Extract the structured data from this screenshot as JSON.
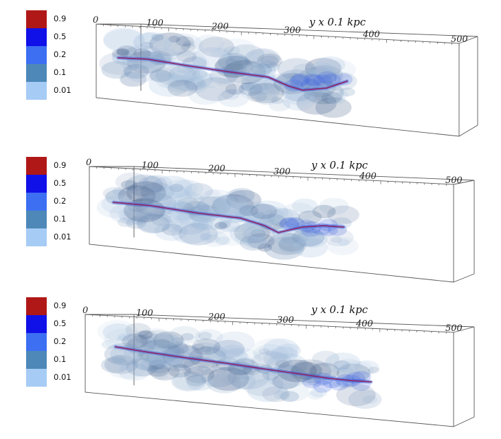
{
  "legend": {
    "levels": [
      {
        "label": "0.9",
        "color": "#b01818"
      },
      {
        "label": "0.5",
        "color": "#1010e8"
      },
      {
        "label": "0.2",
        "color": "#3d6ff2"
      },
      {
        "label": "0.1",
        "color": "#4d88b8"
      },
      {
        "label": "0.01",
        "color": "#a6ccf5"
      }
    ]
  },
  "axis": {
    "title": "y x 0.1 kpc",
    "ticks": [
      "0",
      "100",
      "200",
      "300",
      "400",
      "500"
    ]
  },
  "panels": [
    {
      "id": "panel-1"
    },
    {
      "id": "panel-2"
    },
    {
      "id": "panel-3"
    }
  ],
  "colors": {
    "box_line": "#555555",
    "cloud_light": "#a9c3e0",
    "cloud_mid": "#6f90b8",
    "cloud_dark": "#3e5a86",
    "core_blue": "#3a60e0",
    "core_line": "#8a2a6a"
  }
}
